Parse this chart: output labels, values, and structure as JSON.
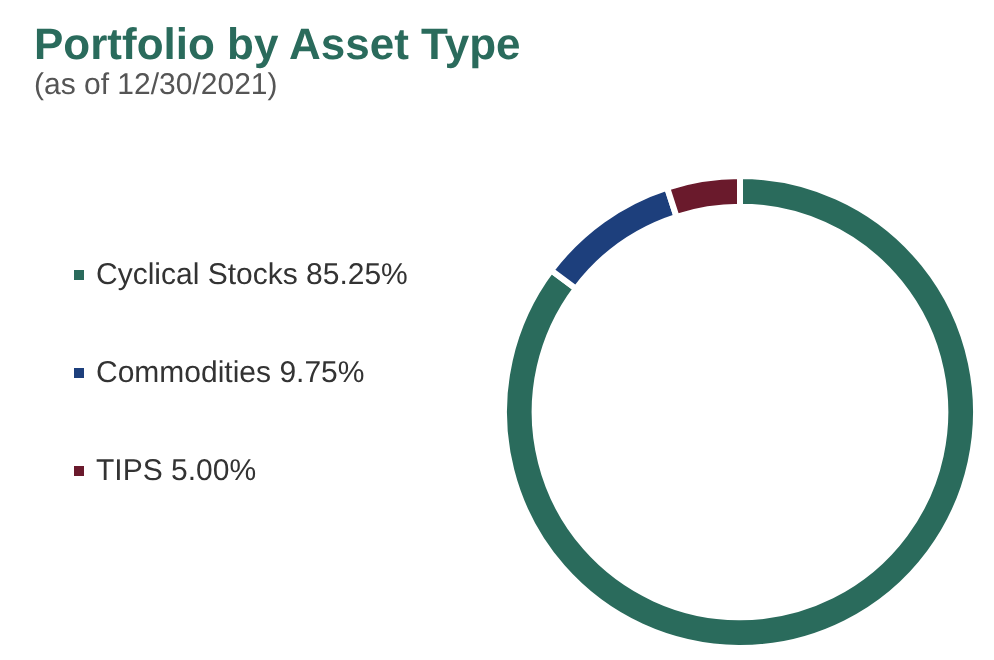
{
  "chart_data": {
    "type": "donut",
    "title": "Portfolio by Asset Type",
    "subtitle": "(as of 12/30/2021)",
    "categories": [
      "Cyclical Stocks",
      "Commodities",
      "TIPS"
    ],
    "values": [
      85.25,
      9.75,
      5.0
    ],
    "value_labels": [
      "85.25%",
      "9.75%",
      "5.00%"
    ],
    "colors": [
      "#2a6b5c",
      "#1d3f7c",
      "#6a1a2c"
    ],
    "legend": "left"
  }
}
